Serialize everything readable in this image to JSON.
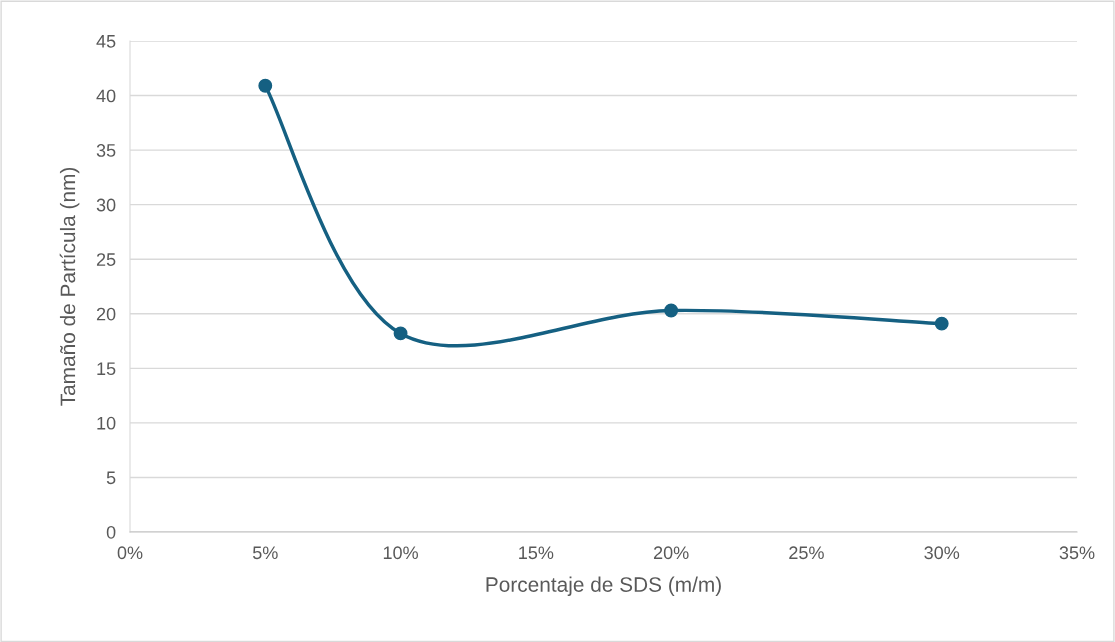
{
  "chart_data": {
    "type": "line",
    "xlabel": "Porcentaje de SDS (m/m)",
    "ylabel": "Tamaño de Partícula (nm)",
    "x": [
      5,
      10,
      20,
      30
    ],
    "series": [
      {
        "color": "#156082",
        "values": [
          40.9,
          18.2,
          20.3,
          19.1
        ]
      }
    ],
    "xlim": [
      0,
      35
    ],
    "xticks": [
      {
        "value": 0,
        "label": "0%"
      },
      {
        "value": 5,
        "label": "5%"
      },
      {
        "value": 10,
        "label": "10%"
      },
      {
        "value": 15,
        "label": "15%"
      },
      {
        "value": 20,
        "label": "20%"
      },
      {
        "value": 25,
        "label": "25%"
      },
      {
        "value": 30,
        "label": "30%"
      },
      {
        "value": 35,
        "label": "35%"
      }
    ],
    "ylim": [
      0,
      45
    ],
    "yticks": [
      0,
      5,
      10,
      15,
      20,
      25,
      30,
      35,
      40,
      45
    ],
    "grid": "y",
    "marker": "circle",
    "line_style": "solid",
    "legend": false
  }
}
